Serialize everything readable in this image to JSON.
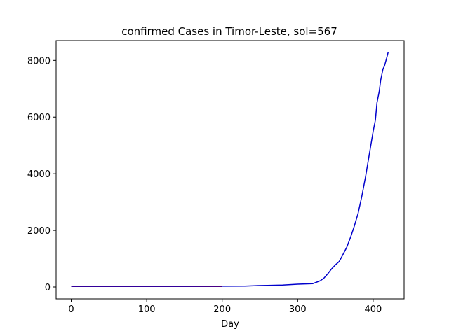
{
  "chart_data": {
    "type": "line",
    "title": "confirmed Cases in Timor-Leste, sol=567",
    "xlabel": "Day",
    "ylabel": "",
    "xlim": [
      -20,
      441
    ],
    "ylim": [
      -420,
      8700
    ],
    "xticks": [
      0,
      100,
      200,
      300,
      400
    ],
    "yticks": [
      0,
      2000,
      4000,
      6000,
      8000
    ],
    "grid": false,
    "series": [
      {
        "color": "#cc0000",
        "x": [
          0,
          50,
          100,
          150,
          200
        ],
        "y": [
          20,
          20,
          20,
          20,
          20
        ]
      },
      {
        "color": "#0000cc",
        "x": [
          0,
          50,
          100,
          150,
          200,
          230,
          248,
          260,
          280,
          300,
          320,
          330,
          335,
          340,
          345,
          350,
          355,
          360,
          365,
          370,
          375,
          380,
          385,
          390,
          395,
          400,
          403,
          405,
          408,
          410,
          413,
          415,
          418,
          420
        ],
        "y": [
          25,
          25,
          25,
          25,
          28,
          30,
          50,
          55,
          70,
          100,
          120,
          220,
          320,
          470,
          640,
          780,
          900,
          1150,
          1400,
          1750,
          2150,
          2600,
          3200,
          3900,
          4700,
          5500,
          5900,
          6500,
          6900,
          7300,
          7700,
          7800,
          8100,
          8300
        ]
      }
    ]
  }
}
